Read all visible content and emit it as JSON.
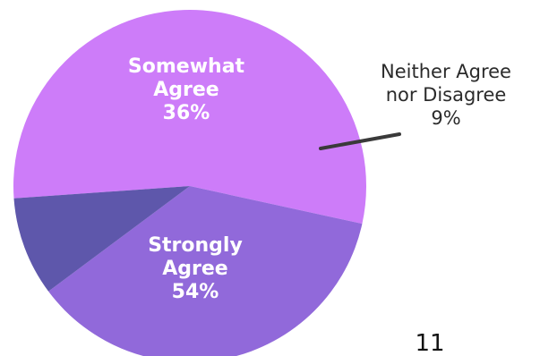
{
  "chart_data": {
    "type": "pie",
    "title": "",
    "slices": [
      {
        "category_lines": [
          "Strongly",
          "Agree"
        ],
        "value": 54,
        "value_label": "54%",
        "color": "#CD7CF9",
        "label_style": "inside"
      },
      {
        "category_lines": [
          "Somewhat",
          "Agree"
        ],
        "value": 36,
        "value_label": "36%",
        "color": "#9169DA",
        "label_style": "inside"
      },
      {
        "category_lines": [
          "Neither Agree",
          "nor Disagree"
        ],
        "value": 9,
        "value_label": "9%",
        "color": "#5E57AB",
        "label_style": "outside-with-leader"
      }
    ],
    "legend": "none"
  },
  "page_number": "11"
}
